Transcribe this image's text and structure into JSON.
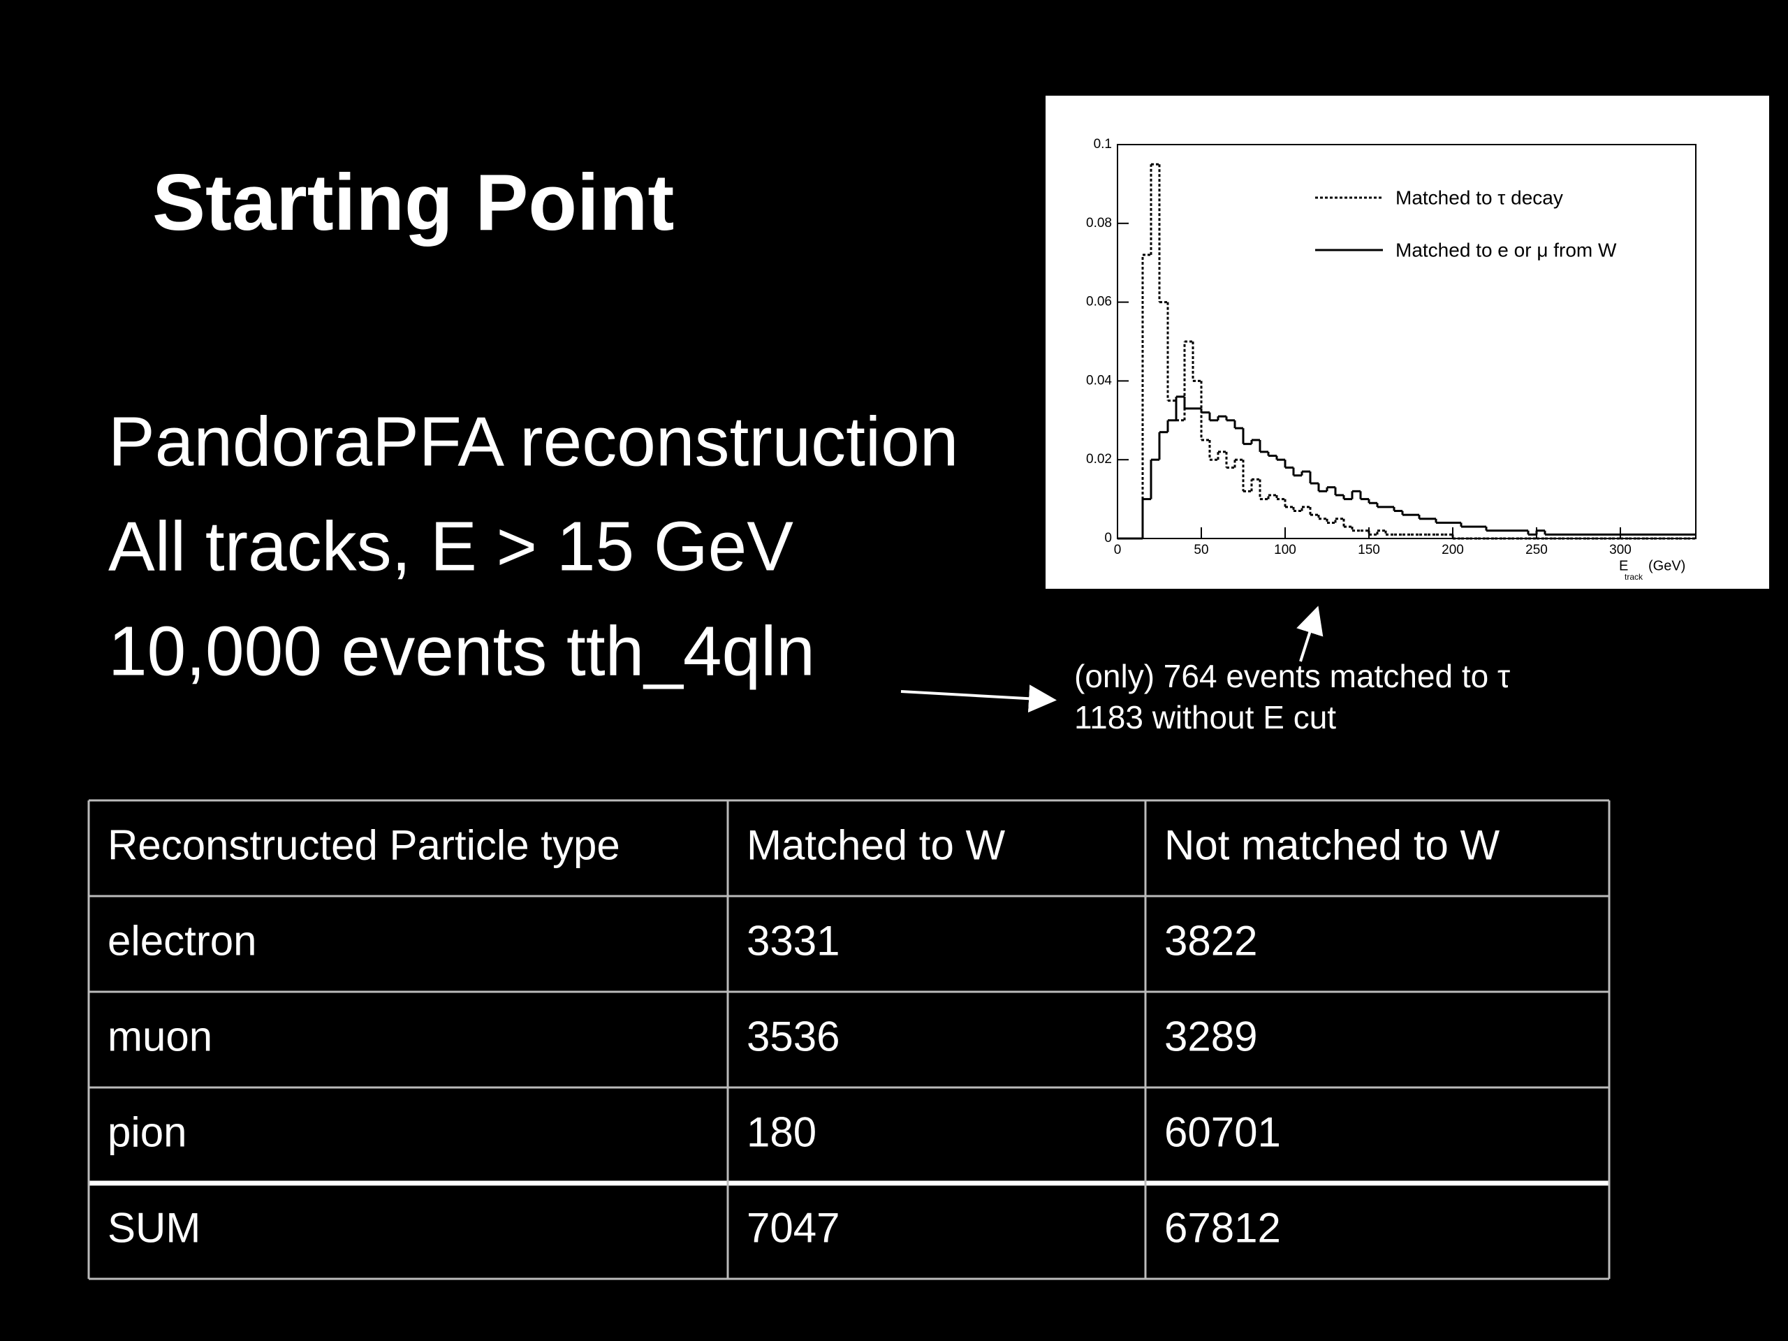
{
  "header": {
    "title": "Starting Point"
  },
  "bullets": [
    "PandoraPFA reconstruction",
    "All tracks, E > 15 GeV",
    "10,000 events tth_4qln"
  ],
  "annotation": [
    "(only) 764 events matched to τ",
    "1183 without E cut"
  ],
  "chart_data": {
    "type": "histogram",
    "x_label": {
      "main": "E",
      "sub": "track",
      "unit": "(GeV)"
    },
    "bins": [
      0,
      5,
      10,
      15,
      20,
      25,
      30,
      35,
      40,
      45,
      50,
      55,
      60,
      65,
      70,
      75,
      80,
      85,
      90,
      95,
      100,
      105,
      110,
      115,
      120,
      125,
      130,
      135,
      140,
      145,
      150,
      155,
      160,
      165,
      170,
      175,
      180,
      185,
      190,
      195,
      200,
      205,
      210,
      215,
      220,
      225,
      230,
      235,
      240,
      245,
      250,
      255,
      260,
      265,
      270,
      275,
      280,
      285,
      290,
      295,
      300,
      305,
      310,
      315,
      320,
      325,
      330,
      335,
      340,
      345
    ],
    "series": [
      {
        "name": "Matched to τ decay",
        "color": "#000000",
        "line_style": "dotted",
        "values": [
          0,
          0,
          0,
          0.072,
          0.095,
          0.06,
          0.035,
          0.03,
          0.05,
          0.04,
          0.025,
          0.02,
          0.022,
          0.018,
          0.02,
          0.012,
          0.015,
          0.01,
          0.011,
          0.01,
          0.008,
          0.007,
          0.008,
          0.006,
          0.005,
          0.004,
          0.005,
          0.003,
          0.002,
          0.002,
          0.001,
          0.002,
          0.001,
          0.001,
          0.001,
          0.001,
          0.001,
          0.001,
          0.001,
          0.001,
          0,
          0,
          0,
          0,
          0,
          0,
          0,
          0,
          0,
          0,
          0,
          0,
          0,
          0,
          0,
          0,
          0,
          0,
          0,
          0,
          0,
          0,
          0,
          0,
          0,
          0,
          0,
          0,
          0
        ]
      },
      {
        "name": "Matched to e or μ from W",
        "color": "#000000",
        "line_style": "solid",
        "values": [
          0,
          0,
          0,
          0.01,
          0.02,
          0.027,
          0.03,
          0.036,
          0.033,
          0.033,
          0.032,
          0.03,
          0.031,
          0.03,
          0.028,
          0.024,
          0.025,
          0.022,
          0.021,
          0.02,
          0.018,
          0.016,
          0.017,
          0.014,
          0.012,
          0.013,
          0.011,
          0.01,
          0.012,
          0.01,
          0.009,
          0.008,
          0.008,
          0.007,
          0.006,
          0.006,
          0.005,
          0.005,
          0.004,
          0.004,
          0.004,
          0.003,
          0.003,
          0.003,
          0.002,
          0.002,
          0.002,
          0.002,
          0.002,
          0.001,
          0.002,
          0.001,
          0.001,
          0.001,
          0.001,
          0.001,
          0.001,
          0.001,
          0.001,
          0.001,
          0.001,
          0.001,
          0.001,
          0.001,
          0.001,
          0.001,
          0.001,
          0.001,
          0.001
        ]
      }
    ],
    "xlim": [
      0,
      345
    ],
    "xticks": [
      0,
      50,
      100,
      150,
      200,
      250,
      300
    ],
    "ylim": [
      0,
      0.1
    ],
    "yticks": [
      0,
      0.02,
      0.04,
      0.06,
      0.08,
      0.1
    ],
    "legend": "top-right"
  },
  "table": {
    "header": [
      "Reconstructed Particle type",
      "Matched to W",
      "Not matched to W"
    ],
    "rows": [
      [
        "electron",
        "3331",
        "3822"
      ],
      [
        "muon",
        "3536",
        "3289"
      ],
      [
        "pion",
        "180",
        "60701"
      ],
      [
        "SUM",
        "7047",
        "67812"
      ]
    ]
  }
}
